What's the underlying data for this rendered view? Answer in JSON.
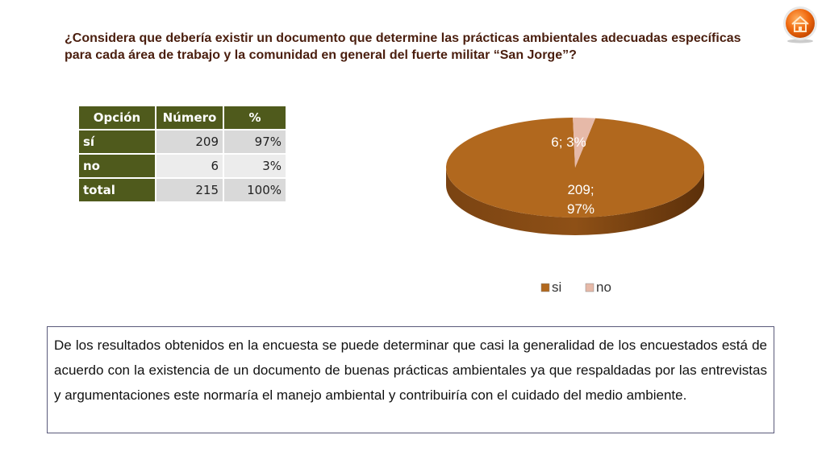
{
  "question": "¿Considera que debería existir un documento que determine las prácticas ambientales adecuadas específicas para cada área de trabajo y la comunidad en general del fuerte militar “San Jorge”?",
  "table": {
    "headers": [
      "Opción",
      "Número",
      "%"
    ],
    "rows": [
      [
        "sí",
        "209",
        "97%"
      ],
      [
        "no",
        "6",
        "3%"
      ],
      [
        "total",
        "215",
        "100%"
      ]
    ]
  },
  "chart_data": {
    "type": "pie",
    "style": "3d",
    "title": "",
    "categories": [
      "si",
      "no"
    ],
    "values": [
      209,
      6
    ],
    "percents": [
      97,
      3
    ],
    "data_labels": [
      "209; 97%",
      "6; 3%"
    ],
    "colors": [
      "#b1681e",
      "#e6b9a8"
    ],
    "legend": "bottom"
  },
  "summary": "De los resultados obtenidos en la encuesta se puede determinar que casi la generalidad de los encuestados está de acuerdo con la existencia de un documento de buenas prácticas ambientales ya que respaldadas por las entrevistas y argumentaciones este normaría el manejo ambiental y contribuiría con el cuidado del medio ambiente.",
  "icons": {
    "home": "home-icon"
  }
}
